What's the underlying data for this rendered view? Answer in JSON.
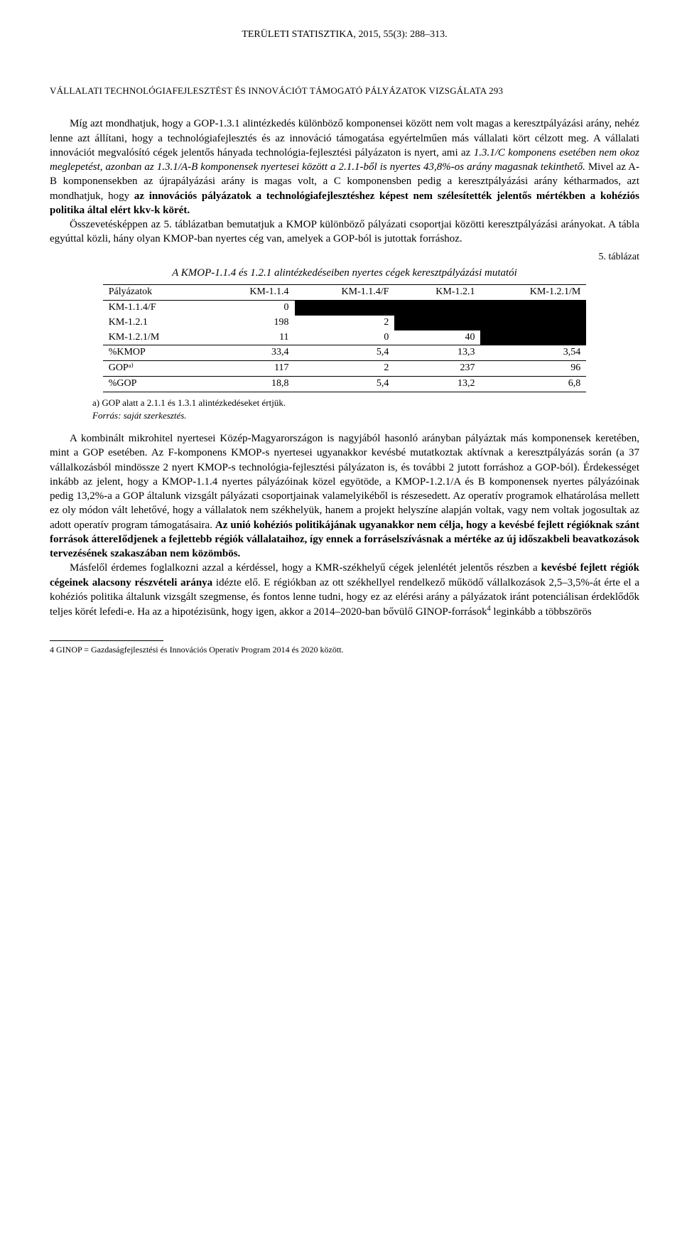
{
  "journal_header": "TERÜLETI STATISZTIKA, 2015, 55(3): 288–313.",
  "running_head": "VÁLLALATI TECHNOLÓGIAFEJLESZTÉST ÉS INNOVÁCIÓT TÁMOGATÓ PÁLYÁZATOK VIZSGÁLATA 293",
  "p1_lead": "Míg azt mondhatjuk, hogy a GOP-1.3.1 alintézkedés különböző komponensei között nem volt magas a keresztpályázási arány, nehéz lenne azt állítani, hogy a technológiafejlesztés és az innováció támogatása egyértelműen más vállalati kört célzott meg. A vállalati innovációt megvalósító cégek jelentős hányada technológia-fejlesztési pályázaton is nyert, ami az ",
  "p1_italic1": "1.3.1/C komponens esetében nem okoz meglepetést, azonban az 1.3.1/A-B komponensek nyertesei között a 2.1.1-ből is nyertes 43,8%-os arány magasnak tekinthető.",
  "p1_mid": " Mivel az A-B komponensekben az újrapályázási arány is magas volt, a C komponensben pedig a keresztpályázási arány kétharmados, azt mondhatjuk, hogy ",
  "p1_bold": "az innovációs pályázatok a technológiafejlesztéshez képest nem szélesítették jelentős mértékben a kohéziós politika által elért kkv-k körét.",
  "p2": "Összevetésképpen az 5. táblázatban bemutatjuk a KMOP különböző pályázati csoportjai közötti keresztpályázási arányokat. A tábla egyúttal közli, hány olyan KMOP-ban nyertes cég van, amelyek a GOP-ból is jutottak forráshoz.",
  "table": {
    "caption_right": "5. táblázat",
    "title": "A KMOP-1.1.4 és 1.2.1 alintézkedéseiben nyertes cégek keresztpályázási mutatói",
    "columns": [
      "Pályázatok",
      "KM-1.1.4",
      "KM-1.1.4/F",
      "KM-1.2.1",
      "KM-1.2.1/M"
    ],
    "rows": [
      {
        "label": "KM-1.1.4/F",
        "v": [
          "0",
          "BLK",
          "BLK",
          "BLK"
        ]
      },
      {
        "label": "KM-1.2.1",
        "v": [
          "198",
          "2",
          "BLK",
          "BLK"
        ]
      },
      {
        "label": "KM-1.2.1/M",
        "v": [
          "11",
          "0",
          "40",
          "BLK"
        ]
      },
      {
        "label": "%KMOP",
        "v": [
          "33,4",
          "5,4",
          "13,3",
          "3,54"
        ],
        "sep": "top"
      },
      {
        "label": "GOPᵃ⁾",
        "v": [
          "117",
          "2",
          "237",
          "96"
        ],
        "sep": "both"
      },
      {
        "label": "%GOP",
        "v": [
          "18,8",
          "5,4",
          "13,2",
          "6,8"
        ],
        "sep": "bot"
      }
    ],
    "note_a": "a) GOP alatt a 2.1.1 és 1.3.1 alintézkedéseket értjük.",
    "source_label": "Forrás",
    "source_text": ": saját szerkesztés."
  },
  "p3_lead": "A kombinált mikrohitel nyertesei Közép-Magyarországon is nagyjából hasonló arányban pályáztak más komponensek keretében, mint a GOP esetében. Az F-komponens KMOP-s nyertesei ugyanakkor kevésbé mutatkoztak aktívnak a keresztpályázás során (a 37 vállalkozásból mindössze 2 nyert KMOP-s technológia-fejlesztési pályázaton is, és további 2 jutott forráshoz a GOP-ból). Érdekességet inkább az jelent, hogy a KMOP-1.1.4 nyertes pályázóinak közel egyötöde, a KMOP-1.2.1/A és B komponensek nyertes pályázóinak pedig 13,2%-a a GOP általunk vizsgált pályázati csoportjainak valamelyikéből is részesedett. Az operatív programok elhatárolása mellett ez oly módon vált lehetővé, hogy a vállalatok nem székhelyük, hanem a projekt helyszíne alapján voltak, vagy nem voltak jogosultak az adott operatív program támogatásaira. ",
  "p3_bold": "Az unió kohéziós politikájának ugyanakkor nem célja, hogy a kevésbé fejlett régióknak szánt források áttereIődjenek a fejlettebb régiók vállalataihoz, így ennek a forráselszívásnak a mértéke az új időszakbeli beavatkozások tervezésének szakaszában nem közömbös.",
  "p4_lead": "Másfelől érdemes foglalkozni azzal a kérdéssel, hogy a KMR-székhelyű cégek jelenlétét jelentős részben a ",
  "p4_bold": "kevésbé fejlett régiók cégeinek alacsony részvételi aránya",
  "p4_mid": " idézte elő. E régiókban az ott székhellyel rendelkező működő vállalkozások 2,5–3,5%-át érte el a kohéziós politika általunk vizsgált szegmense, és fontos lenne tudni, hogy ez az elérési arány a pályázatok iránt potenciálisan érdeklődők teljes körét lefedi-e. Ha az a hipotézisünk, hogy igen, akkor a 2014–2020-ban bővülő GINOP-források",
  "p4_sup": "4",
  "p4_tail": " leginkább a többszörös",
  "footnote": "4 GINOP = Gazdaságfejlesztési és Innovációs Operatív Program 2014 és 2020 között."
}
